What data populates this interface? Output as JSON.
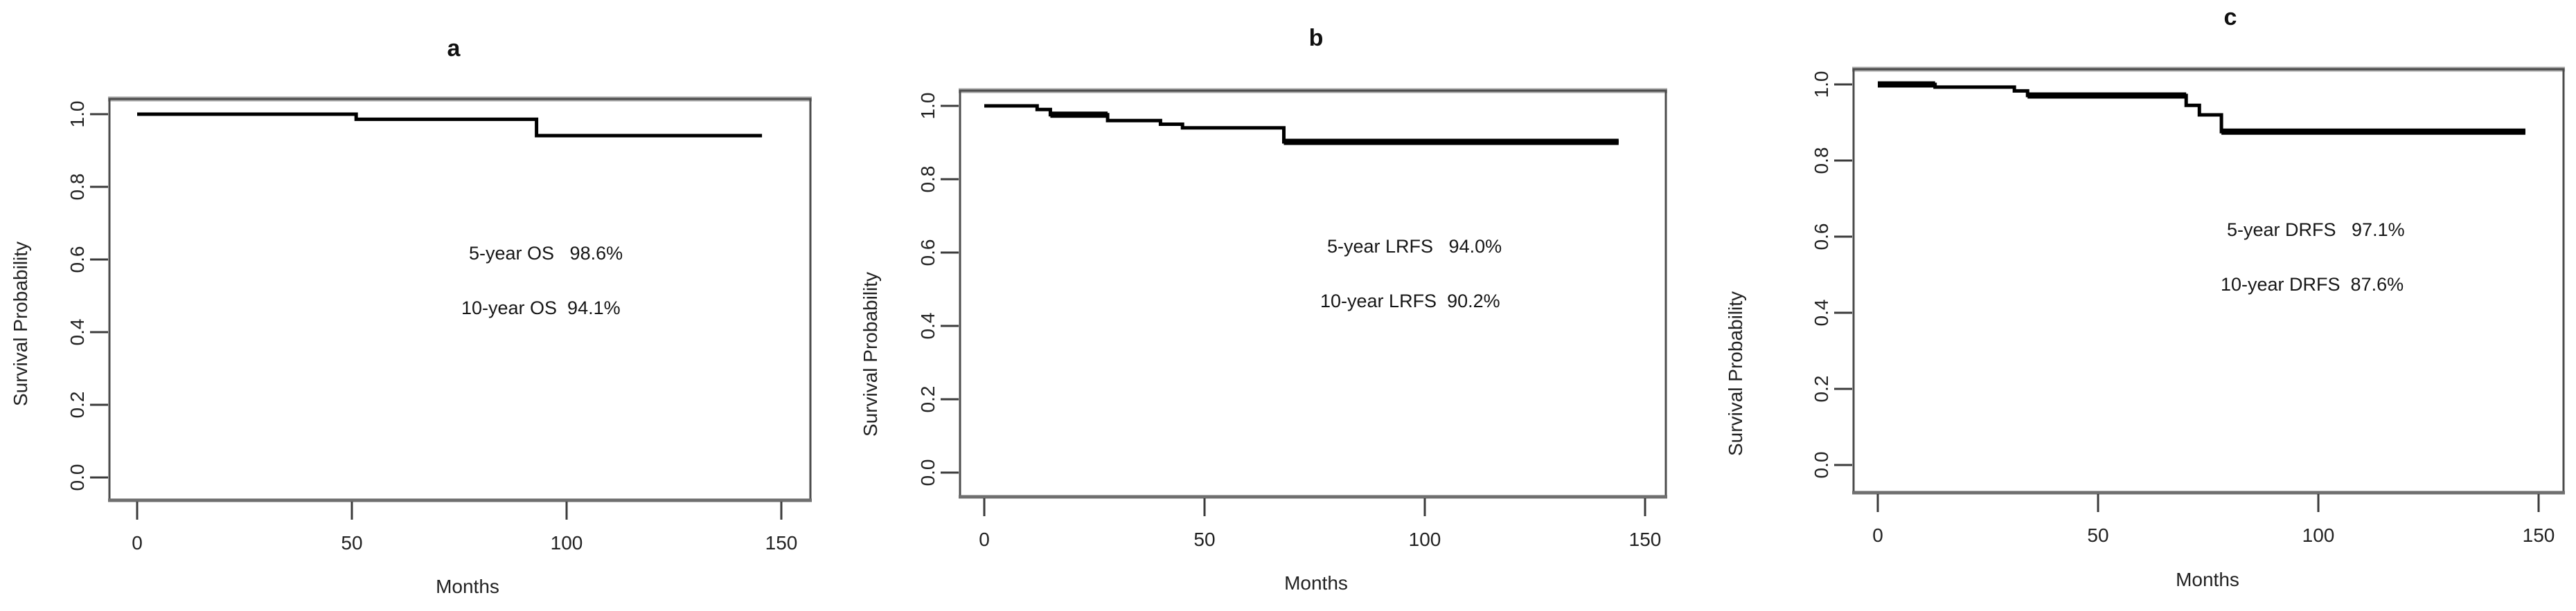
{
  "figure": {
    "description": "Three Kaplan-Meier survival curve panels",
    "background_color": "#ffffff",
    "curve_color": "#000000",
    "axis_color": "#4c4c4c"
  },
  "panels": [
    {
      "id": "a",
      "title": "a",
      "x_axis": {
        "label": "Months",
        "tick_labels": [
          "0",
          "50",
          "100",
          "150"
        ]
      },
      "y_axis": {
        "label": "Survival Probability",
        "tick_labels": [
          "1.0",
          "0.8",
          "0.6",
          "0.4",
          "0.2",
          "0.0"
        ]
      },
      "annotations": [
        {
          "label": "5-year OS",
          "value": "98.6%",
          "text": "5-year OS   98.6%"
        },
        {
          "label": "10-year OS",
          "value": "94.1%",
          "text": "10-year OS  94.1%"
        }
      ]
    },
    {
      "id": "b",
      "title": "b",
      "x_axis": {
        "label": "Months",
        "tick_labels": [
          "0",
          "50",
          "100",
          "150"
        ]
      },
      "y_axis": {
        "label": "Survival Probability",
        "tick_labels": [
          "1.0",
          "0.8",
          "0.6",
          "0.4",
          "0.2",
          "0.0"
        ]
      },
      "annotations": [
        {
          "label": "5-year LRFS",
          "value": "94.0%",
          "text": "5-year LRFS   94.0%"
        },
        {
          "label": "10-year LRFS",
          "value": "90.2%",
          "text": "10-year LRFS  90.2%"
        }
      ]
    },
    {
      "id": "c",
      "title": "c",
      "x_axis": {
        "label": "Months",
        "tick_labels": [
          "0",
          "50",
          "100",
          "150"
        ]
      },
      "y_axis": {
        "label": "Survival Probability",
        "tick_labels": [
          "1.0",
          "0.8",
          "0.6",
          "0.4",
          "0.2",
          "0.0"
        ]
      },
      "annotations": [
        {
          "label": "5-year DRFS",
          "value": "97.1%",
          "text": "5-year DRFS   97.1%"
        },
        {
          "label": "10-year DRFS",
          "value": "87.6%",
          "text": "10-year DRFS  87.6%"
        }
      ]
    }
  ],
  "chart_data": [
    {
      "type": "line",
      "subtype": "kaplan-meier-step",
      "panel": "a",
      "title": "a",
      "xlabel": "Months",
      "ylabel": "Survival Probability",
      "xlim": [
        0,
        150
      ],
      "ylim": [
        0.0,
        1.0
      ],
      "x_ticks": [
        0,
        50,
        100,
        150
      ],
      "y_ticks": [
        1.0,
        0.8,
        0.6,
        0.4,
        0.2,
        0.0
      ],
      "grid": false,
      "legend": "none",
      "line_color": "#000000",
      "steps": [
        {
          "t": 0,
          "p": 1.0
        },
        {
          "t": 51,
          "p": 0.986
        },
        {
          "t": 93,
          "p": 0.941
        }
      ],
      "t_end": 145.5,
      "key_values": {
        "5_year": 0.986,
        "10_year": 0.941
      }
    },
    {
      "type": "line",
      "subtype": "kaplan-meier-step",
      "panel": "b",
      "title": "b",
      "xlabel": "Months",
      "ylabel": "Survival Probability",
      "xlim": [
        0,
        150
      ],
      "ylim": [
        0.0,
        1.0
      ],
      "x_ticks": [
        0,
        50,
        100,
        150
      ],
      "y_ticks": [
        1.0,
        0.8,
        0.6,
        0.4,
        0.2,
        0.0
      ],
      "grid": false,
      "legend": "none",
      "line_color": "#000000",
      "steps": [
        {
          "t": 0,
          "p": 1.0
        },
        {
          "t": 12,
          "p": 0.99
        },
        {
          "t": 15,
          "p": 0.976,
          "bold": true
        },
        {
          "t": 28,
          "p": 0.96
        },
        {
          "t": 40,
          "p": 0.95
        },
        {
          "t": 45,
          "p": 0.94
        },
        {
          "t": 68,
          "p": 0.902,
          "bold": true
        }
      ],
      "t_end": 144,
      "key_values": {
        "5_year": 0.94,
        "10_year": 0.902
      }
    },
    {
      "type": "line",
      "subtype": "kaplan-meier-step",
      "panel": "c",
      "title": "c",
      "xlabel": "Months",
      "ylabel": "Survival Probability",
      "xlim": [
        0,
        150
      ],
      "ylim": [
        0.0,
        1.0
      ],
      "x_ticks": [
        0,
        50,
        100,
        150
      ],
      "y_ticks": [
        1.0,
        0.8,
        0.6,
        0.4,
        0.2,
        0.0
      ],
      "grid": false,
      "legend": "none",
      "line_color": "#000000",
      "steps": [
        {
          "t": 0,
          "p": 1.0,
          "bold": true
        },
        {
          "t": 13,
          "p": 0.993
        },
        {
          "t": 31,
          "p": 0.983
        },
        {
          "t": 34,
          "p": 0.971,
          "bold": true
        },
        {
          "t": 70,
          "p": 0.945
        },
        {
          "t": 73,
          "p": 0.92
        },
        {
          "t": 78,
          "p": 0.876,
          "bold": true
        }
      ],
      "t_end": 147,
      "key_values": {
        "5_year": 0.971,
        "10_year": 0.876
      }
    }
  ]
}
